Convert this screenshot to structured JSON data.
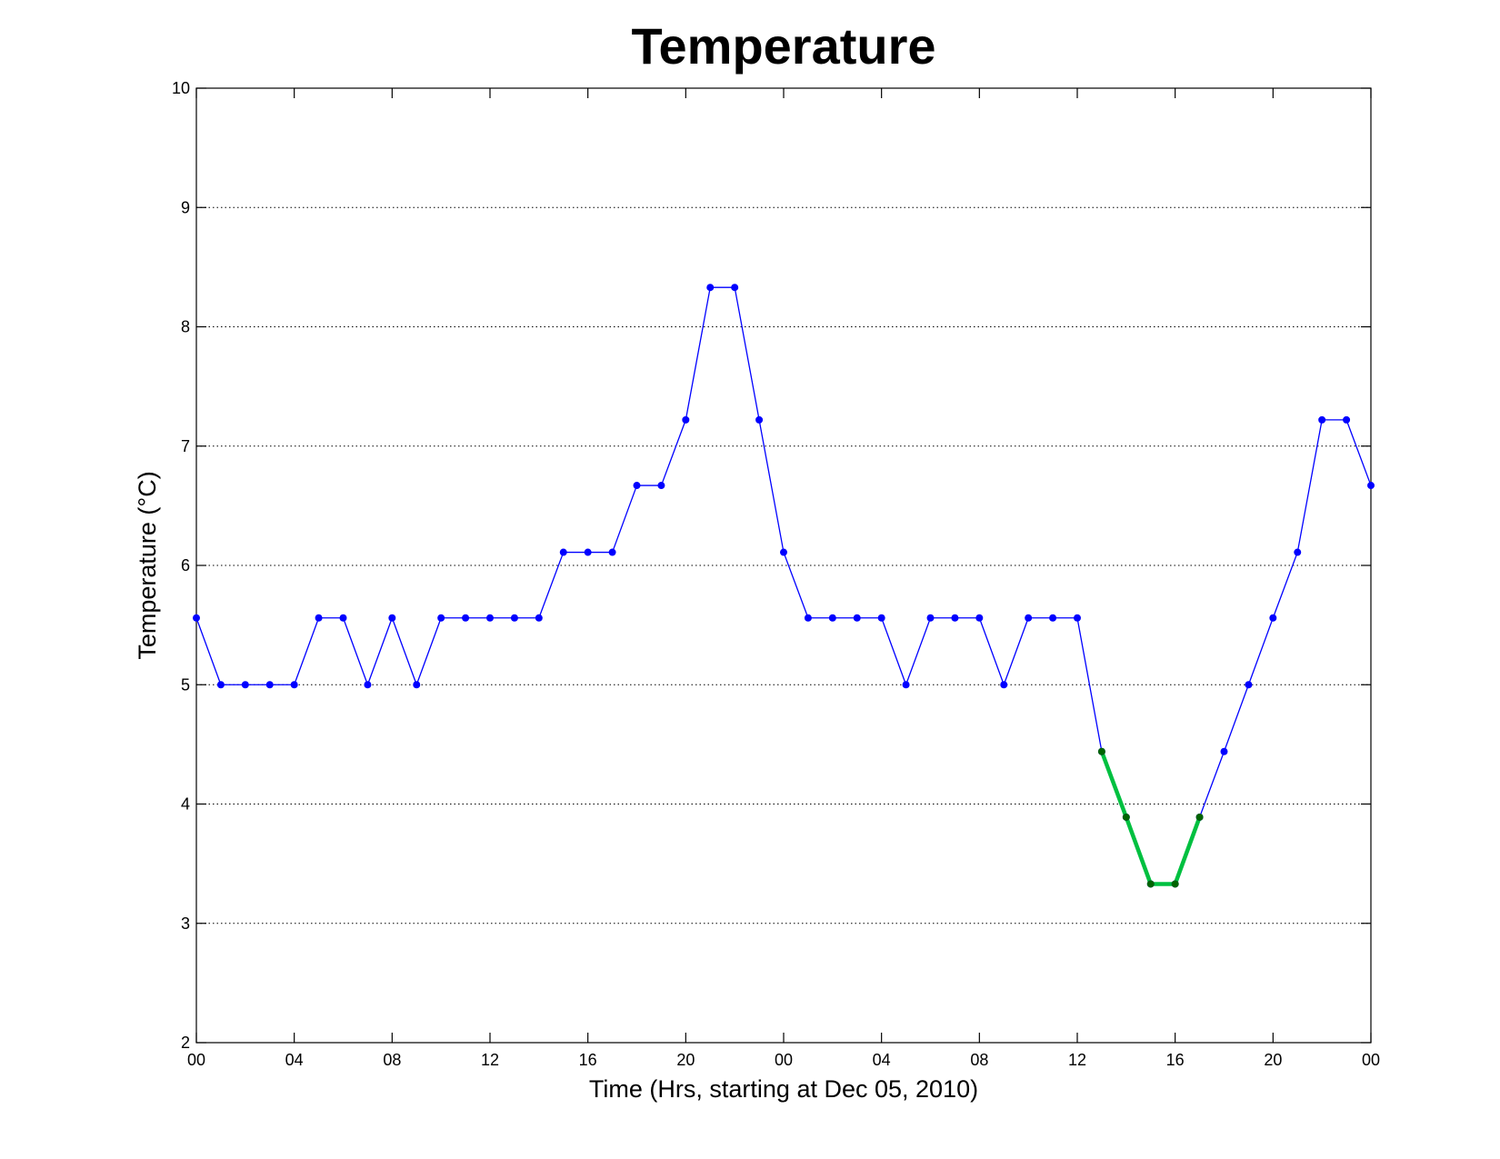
{
  "chart_data": {
    "type": "line",
    "title": "Temperature",
    "xlabel": "Time (Hrs, starting at Dec 05, 2010)",
    "ylabel": "Temperature (°C)",
    "ylim": [
      2,
      10
    ],
    "xlim": [
      "2010-12-05 00:00",
      "2010-12-07 00:00"
    ],
    "yticks": [
      "2",
      "3",
      "4",
      "5",
      "6",
      "7",
      "8",
      "9",
      "10"
    ],
    "xticks": [
      "00",
      "04",
      "08",
      "12",
      "16",
      "20",
      "00",
      "04",
      "08",
      "12",
      "16",
      "20",
      "00"
    ],
    "grid": "horizontal dotted",
    "x": [
      "2010-12-05 00:00",
      "2010-12-05 01:00",
      "2010-12-05 02:00",
      "2010-12-05 03:00",
      "2010-12-05 04:00",
      "2010-12-05 05:00",
      "2010-12-05 06:00",
      "2010-12-05 07:00",
      "2010-12-05 08:00",
      "2010-12-05 09:00",
      "2010-12-05 10:00",
      "2010-12-05 11:00",
      "2010-12-05 12:00",
      "2010-12-05 13:00",
      "2010-12-05 14:00",
      "2010-12-05 15:00",
      "2010-12-05 16:00",
      "2010-12-05 17:00",
      "2010-12-05 18:00",
      "2010-12-05 19:00",
      "2010-12-05 20:00",
      "2010-12-05 21:00",
      "2010-12-05 22:00",
      "2010-12-05 23:00",
      "2010-12-06 00:00",
      "2010-12-06 01:00",
      "2010-12-06 02:00",
      "2010-12-06 03:00",
      "2010-12-06 04:00",
      "2010-12-06 05:00",
      "2010-12-06 06:00",
      "2010-12-06 07:00",
      "2010-12-06 08:00",
      "2010-12-06 09:00",
      "2010-12-06 10:00",
      "2010-12-06 11:00",
      "2010-12-06 12:00",
      "2010-12-06 13:00",
      "2010-12-06 14:00",
      "2010-12-06 15:00",
      "2010-12-06 16:00",
      "2010-12-06 17:00",
      "2010-12-06 18:00",
      "2010-12-06 19:00",
      "2010-12-06 20:00",
      "2010-12-06 21:00",
      "2010-12-06 22:00",
      "2010-12-06 23:00",
      "2010-12-07 00:00"
    ],
    "series": [
      {
        "color": "#0000ff",
        "marker": "dot",
        "values": [
          5.56,
          5.0,
          5.0,
          5.0,
          5.0,
          5.56,
          5.56,
          5.0,
          5.56,
          5.0,
          5.56,
          5.56,
          5.56,
          5.56,
          5.56,
          6.11,
          6.11,
          6.11,
          6.67,
          6.67,
          7.22,
          8.33,
          8.33,
          7.22,
          6.11,
          5.56,
          5.56,
          5.56,
          5.56,
          5.0,
          5.56,
          5.56,
          5.56,
          5.0,
          5.56,
          5.56,
          5.56,
          4.44,
          3.89,
          3.33,
          3.33,
          3.89,
          4.44,
          5.0,
          5.56,
          6.11,
          7.22,
          7.22,
          6.67
        ]
      },
      {
        "color": "#00c040",
        "marker_color": "#006400",
        "marker": "dot",
        "highlight": true,
        "x": [
          "2010-12-06 13:00",
          "2010-12-06 14:00",
          "2010-12-06 15:00",
          "2010-12-06 16:00",
          "2010-12-06 17:00"
        ],
        "values": [
          4.44,
          3.89,
          3.33,
          3.33,
          3.89
        ]
      }
    ]
  }
}
